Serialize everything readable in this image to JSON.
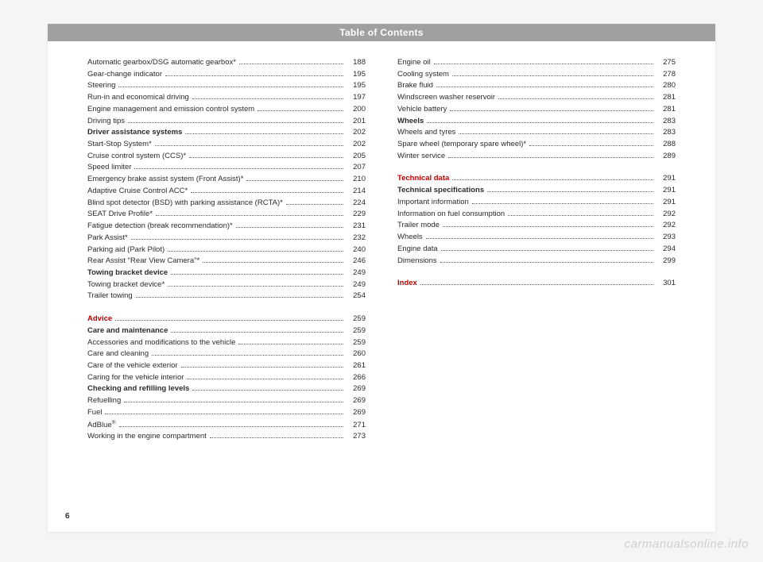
{
  "header": {
    "title": "Table of Contents"
  },
  "pageNumber": "6",
  "watermark": "carmanualsonline.info",
  "col1": [
    {
      "label": "Automatic gearbox/DSG automatic gearbox*",
      "page": "188"
    },
    {
      "label": "Gear-change indicator",
      "page": "195"
    },
    {
      "label": "Steering",
      "page": "195"
    },
    {
      "label": "Run-in and economical driving",
      "page": "197"
    },
    {
      "label": "Engine management and emission control system",
      "page": "200"
    },
    {
      "label": "Driving tips",
      "page": "201"
    },
    {
      "label": "Driver assistance systems",
      "page": "202",
      "bold": true
    },
    {
      "label": "Start-Stop System*",
      "page": "202"
    },
    {
      "label": "Cruise control system (CCS)*",
      "page": "205"
    },
    {
      "label": "Speed limiter",
      "page": "207"
    },
    {
      "label": "Emergency brake assist system (Front Assist)*",
      "page": "210"
    },
    {
      "label": "Adaptive Cruise Control ACC*",
      "page": "214"
    },
    {
      "label": "Blind spot detector (BSD) with parking assistance (RCTA)*",
      "page": "224"
    },
    {
      "label": "SEAT Drive Profile*",
      "page": "229"
    },
    {
      "label": "Fatigue detection (break recommendation)*",
      "page": "231"
    },
    {
      "label": "Park Assist*",
      "page": "232"
    },
    {
      "label": "Parking aid (Park Pilot)",
      "page": "240"
    },
    {
      "label": "Rear Assist \"Rear View Camera\"*",
      "page": "246"
    },
    {
      "label": "Towing bracket device",
      "page": "249",
      "bold": true
    },
    {
      "label": "Towing bracket device*",
      "page": "249"
    },
    {
      "label": "Trailer towing",
      "page": "254"
    },
    {
      "label": "Advice",
      "page": "259",
      "section": true
    },
    {
      "label": "Care and maintenance",
      "page": "259",
      "bold": true
    },
    {
      "label": "Accessories and modifications to the vehicle",
      "page": "259"
    },
    {
      "label": "Care and cleaning",
      "page": "260"
    },
    {
      "label": "Care of the vehicle exterior",
      "page": "261"
    },
    {
      "label": "Caring for the vehicle interior",
      "page": "266"
    },
    {
      "label": "Checking and refilling levels",
      "page": "269",
      "bold": true
    },
    {
      "label": "Refuelling",
      "page": "269"
    },
    {
      "label": "Fuel",
      "page": "269"
    },
    {
      "label": "AdBlue®",
      "page": "271",
      "sup": true
    },
    {
      "label": "Working in the engine compartment",
      "page": "273"
    }
  ],
  "col2": [
    {
      "label": "Engine oil",
      "page": "275"
    },
    {
      "label": "Cooling system",
      "page": "278"
    },
    {
      "label": "Brake fluid",
      "page": "280"
    },
    {
      "label": "Windscreen washer reservoir",
      "page": "281"
    },
    {
      "label": "Vehicle battery",
      "page": "281"
    },
    {
      "label": "Wheels",
      "page": "283",
      "bold": true
    },
    {
      "label": "Wheels and tyres",
      "page": "283"
    },
    {
      "label": "Spare wheel (temporary spare wheel)*",
      "page": "288"
    },
    {
      "label": "Winter service",
      "page": "289"
    },
    {
      "label": "Technical data",
      "page": "291",
      "section": true
    },
    {
      "label": "Technical specifications",
      "page": "291",
      "bold": true
    },
    {
      "label": "Important information",
      "page": "291"
    },
    {
      "label": "Information on fuel consumption",
      "page": "292"
    },
    {
      "label": "Trailer mode",
      "page": "292"
    },
    {
      "label": "Wheels",
      "page": "293"
    },
    {
      "label": "Engine data",
      "page": "294"
    },
    {
      "label": "Dimensions",
      "page": "299"
    },
    {
      "label": "Index",
      "page": "301",
      "section": true
    }
  ]
}
